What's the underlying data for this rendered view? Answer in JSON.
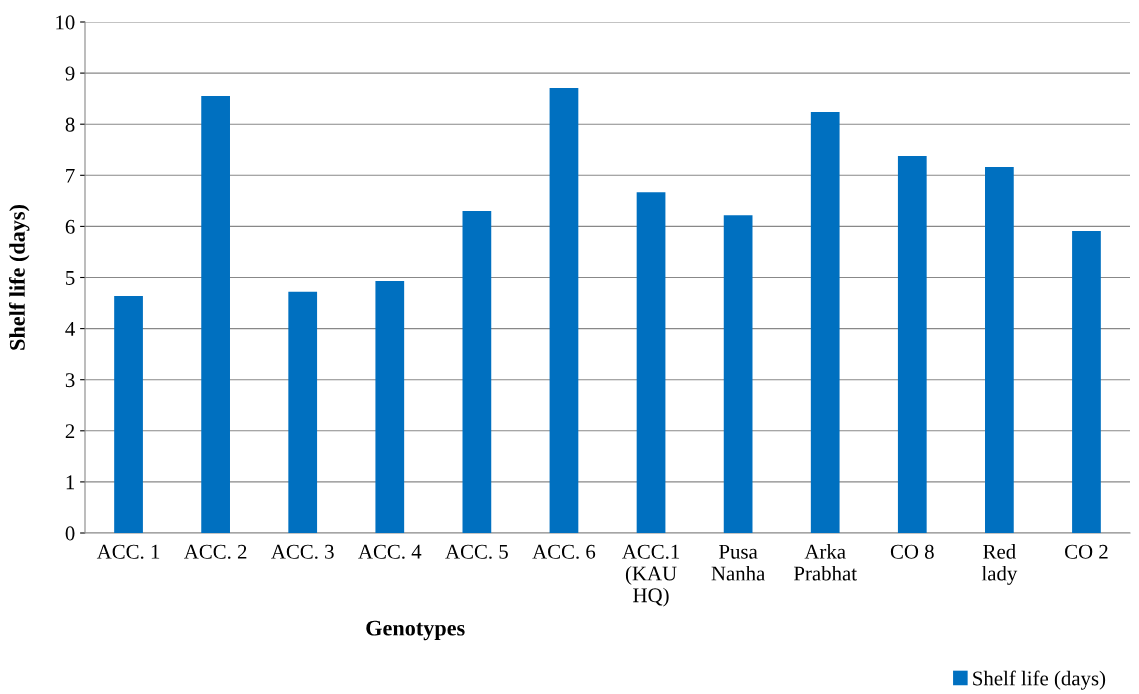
{
  "chart_data": {
    "type": "bar",
    "xlabel": "Genotypes",
    "ylabel": "Shelf life (days)",
    "categories": [
      "ACC. 1",
      "ACC. 2",
      "ACC. 3",
      "ACC. 4",
      "ACC. 5",
      "ACC. 6",
      "ACC.1 (KAU HQ)",
      "Pusa Nanha",
      "Arka Prabhat",
      "CO 8",
      "Red lady",
      "CO 2"
    ],
    "series": [
      {
        "name": "Shelf life (days)",
        "color": "#0070c0",
        "values": [
          4.64,
          8.55,
          4.72,
          4.93,
          6.3,
          8.71,
          6.67,
          6.22,
          8.24,
          7.38,
          7.16,
          5.91
        ]
      }
    ],
    "ylim": [
      0,
      10
    ],
    "yticks": [
      0,
      1,
      2,
      3,
      4,
      5,
      6,
      7,
      8,
      9,
      10
    ],
    "grid": "y",
    "legend": "bottom right"
  }
}
